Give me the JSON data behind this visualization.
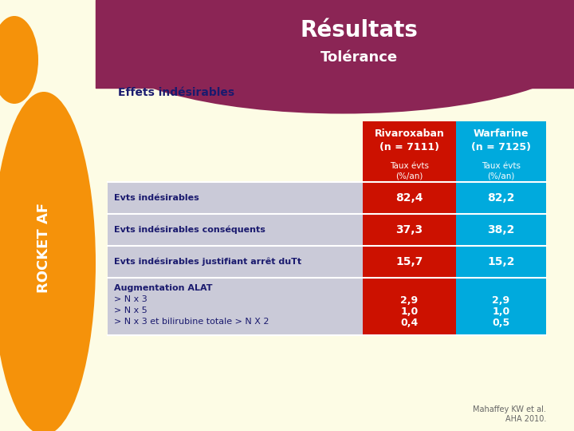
{
  "title": "Résultats",
  "subtitle": "Tolérance",
  "section_title": "Effets indésirables",
  "sidebar_text": "ROCKET AF",
  "bg_color": "#FDFCE5",
  "header_bg": "#8B2555",
  "title_color": "#FFFFFF",
  "sidebar_bg": "#F5920A",
  "col1_header_bg": "#CC1100",
  "col2_header_bg": "#00AADD",
  "col1_data_bg": "#CC1100",
  "col2_data_bg": "#00AADD",
  "row_bg": "#CACAD8",
  "row_bg_last": "#C8C8D5",
  "col1_header_text": "Rivaroxaban\n(n = 7111)",
  "col2_header_text": "Warfarine\n(n = 7125)",
  "subheader_text": "Taux évts\n(%/an)",
  "rows": [
    {
      "label": "Evts indésirables",
      "col1": "82,4",
      "col2": "82,2"
    },
    {
      "label": "Evts indésirables conséquents",
      "col1": "37,3",
      "col2": "38,2"
    },
    {
      "label": "Evts indésirables justifiant arrêt duTt",
      "col1": "15,7",
      "col2": "15,2"
    },
    {
      "label_lines": [
        "Augmentation ALAT",
        "> N x 3",
        "> N x 5",
        "> N x 3 et bilirubine totale > N X 2"
      ],
      "label_bold": [
        true,
        false,
        false,
        false
      ],
      "col1_lines": [
        "2,9",
        "1,0",
        "0,4"
      ],
      "col2_lines": [
        "2,9",
        "1,0",
        "0,5"
      ]
    }
  ],
  "label_color": "#1A1A6E",
  "data_color": "#FFFFFF",
  "footnote": "Mahaffey KW et al.\nAHA 2010."
}
